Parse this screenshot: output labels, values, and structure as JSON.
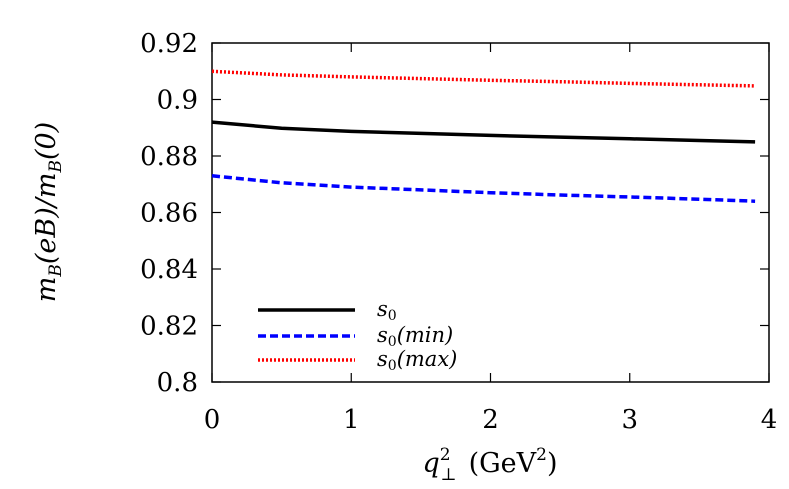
{
  "chart_data": {
    "type": "line",
    "title": "",
    "xlabel": "q⊥² (GeV²)",
    "ylabel": "mB(eB)/mB(0)",
    "xlim": [
      0,
      4
    ],
    "ylim": [
      0.8,
      0.92
    ],
    "x_ticks": [
      "0",
      "1",
      "2",
      "3",
      "4"
    ],
    "y_ticks": [
      "0.8",
      "0.82",
      "0.84",
      "0.86",
      "0.88",
      "0.9",
      "0.92"
    ],
    "legend_position": "bottom-left",
    "series": [
      {
        "name": "s0",
        "color": "#000000",
        "style": "solid",
        "x": [
          0,
          0.5,
          1,
          1.5,
          2,
          2.5,
          3,
          3.5,
          3.9
        ],
        "y": [
          0.892,
          0.8898,
          0.8887,
          0.888,
          0.8873,
          0.8867,
          0.8861,
          0.8855,
          0.885
        ]
      },
      {
        "name": "s0(min)",
        "color": "#0000ff",
        "style": "dashed",
        "x": [
          0,
          0.5,
          1,
          1.5,
          2,
          2.5,
          3,
          3.5,
          3.9
        ],
        "y": [
          0.873,
          0.8705,
          0.869,
          0.868,
          0.867,
          0.8662,
          0.8655,
          0.8647,
          0.864
        ]
      },
      {
        "name": "s0(max)",
        "color": "#ff0000",
        "style": "dotted",
        "x": [
          0,
          0.5,
          1,
          1.5,
          2,
          2.5,
          3,
          3.5,
          3.9
        ],
        "y": [
          0.91,
          0.9087,
          0.908,
          0.9074,
          0.9068,
          0.9063,
          0.9057,
          0.9052,
          0.9048
        ]
      }
    ]
  },
  "legend": {
    "s0": {
      "base": "s",
      "sub": "0",
      "suffix": ""
    },
    "s0min": {
      "base": "s",
      "sub": "0",
      "suffix": "(min)"
    },
    "s0max": {
      "base": "s",
      "sub": "0",
      "suffix": "(max)"
    }
  },
  "axis_text": {
    "x_q": "q",
    "x_sup": "2",
    "x_sub": "⊥",
    "x_unit_open": "(GeV",
    "x_unit_sup": "2",
    "x_unit_close": ")",
    "y_m1": "m",
    "y_sub1": "B",
    "y_mid": "(eB)/",
    "y_m2": "m",
    "y_sub2": "B",
    "y_end": "(0)"
  }
}
